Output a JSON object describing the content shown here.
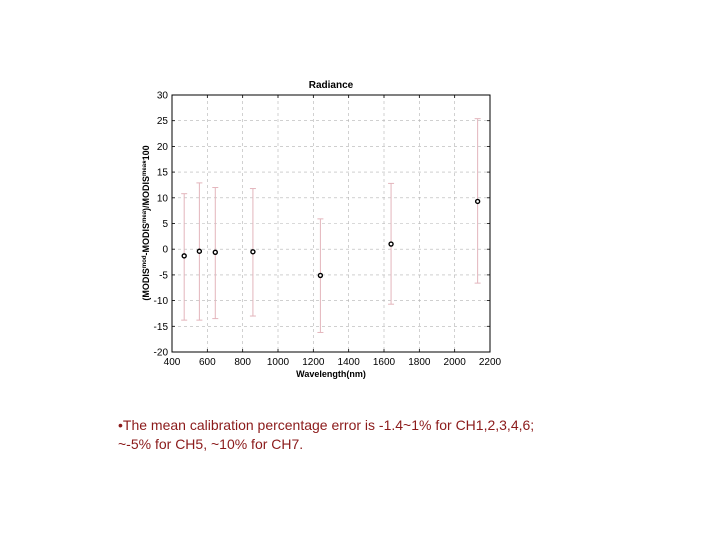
{
  "chart_data": {
    "type": "scatter",
    "title": "Radiance",
    "xlabel": "Wavelength(nm)",
    "ylabel_parts": [
      {
        "t": "(MODIS",
        "sup": false
      },
      {
        "t": "mod",
        "sup": true
      },
      {
        "t": "-MODIS",
        "sup": false
      },
      {
        "t": "mea",
        "sup": true
      },
      {
        "t": ")/MODIS",
        "sup": false
      },
      {
        "t": "mea",
        "sup": true
      },
      {
        "t": "*100",
        "sup": false
      }
    ],
    "xlim": [
      400,
      2200
    ],
    "ylim": [
      -20,
      30
    ],
    "xticks": [
      400,
      600,
      800,
      1000,
      1200,
      1400,
      1600,
      1800,
      2000,
      2200
    ],
    "yticks": [
      -20,
      -15,
      -10,
      -5,
      0,
      5,
      10,
      15,
      20,
      25,
      30
    ],
    "grid": true,
    "points": [
      {
        "x": 469,
        "y": -1.3,
        "err_low": -13.8,
        "err_high": 10.8
      },
      {
        "x": 555,
        "y": -0.4,
        "err_low": -13.8,
        "err_high": 12.9
      },
      {
        "x": 645,
        "y": -0.6,
        "err_low": -13.5,
        "err_high": 12.0
      },
      {
        "x": 858,
        "y": -0.5,
        "err_low": -13.0,
        "err_high": 11.8
      },
      {
        "x": 1240,
        "y": -5.1,
        "err_low": -16.2,
        "err_high": 5.9
      },
      {
        "x": 1640,
        "y": 1.0,
        "err_low": -10.7,
        "err_high": 12.8
      },
      {
        "x": 2130,
        "y": 9.3,
        "err_low": -6.6,
        "err_high": 25.4
      }
    ],
    "colors": {
      "marker": "#000000",
      "errorbar": "#e3b5bc",
      "grid": "#b3b3b3",
      "axis": "#000000"
    }
  },
  "note": {
    "line1": "•The mean calibration percentage error is  -1.4~1% for CH1,2,3,4,6;",
    "line2": "~-5% for CH5, ~10% for CH7.",
    "color": "#8b1a1a"
  }
}
